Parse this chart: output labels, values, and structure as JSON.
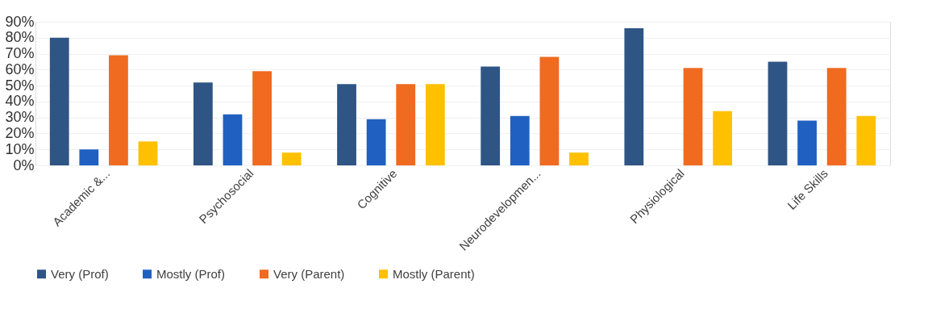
{
  "chart_data": {
    "type": "bar",
    "categories": [
      "Academic &...",
      "Psychosocial",
      "Cognitive",
      "Neurodevelopmen...",
      "Physiological",
      "Life Skills"
    ],
    "series": [
      {
        "name": "Very (Prof)",
        "color": "#2f5585",
        "values": [
          80,
          52,
          51,
          62,
          86,
          65
        ]
      },
      {
        "name": "Mostly (Prof)",
        "color": "#2060c0",
        "values": [
          10,
          32,
          29,
          31,
          null,
          28
        ]
      },
      {
        "name": "Very (Parent)",
        "color": "#f06a20",
        "values": [
          69,
          59,
          51,
          68,
          61,
          61
        ]
      },
      {
        "name": "Mostly (Parent)",
        "color": "#ffc000",
        "values": [
          15,
          8,
          51,
          8,
          34,
          31
        ]
      }
    ],
    "ylim": [
      0,
      90
    ],
    "yticks": [
      {
        "value": 0,
        "label": "0%"
      },
      {
        "value": 10,
        "label": "10%"
      },
      {
        "value": 20,
        "label": "20%"
      },
      {
        "value": 30,
        "label": "30%"
      },
      {
        "value": 40,
        "label": "40%"
      },
      {
        "value": 50,
        "label": "50%"
      },
      {
        "value": 60,
        "label": "60%"
      },
      {
        "value": 70,
        "label": "70%"
      },
      {
        "value": 80,
        "label": "80%"
      },
      {
        "value": 90,
        "label": "90%"
      }
    ],
    "grid": "y",
    "legend": "bottom"
  }
}
